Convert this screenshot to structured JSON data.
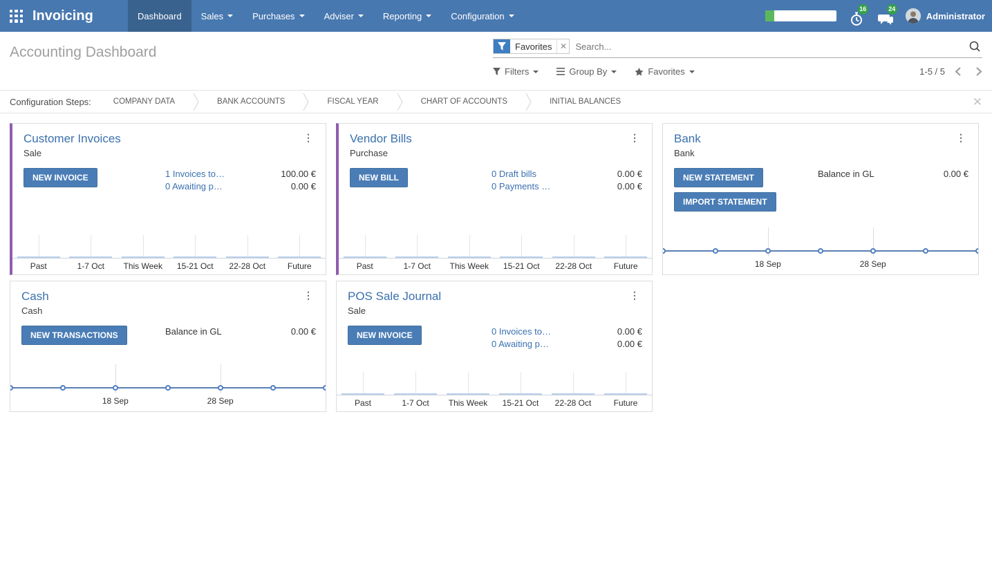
{
  "colors": {
    "header_bg": "#4878b0",
    "header_active_bg": "#3a628f",
    "accent_stripe_purple": "#8f5dad",
    "button_blue": "#4a7db6",
    "link_blue": "#3a70b0",
    "badge_green": "#34a04a",
    "progress_green": "#5cb85c",
    "chart_line_blue": "#5b7fb4",
    "chart_bar_blue": "#b9cfe8"
  },
  "header": {
    "brand": "Invoicing",
    "menu": [
      {
        "label": "Dashboard",
        "active": true,
        "caret": false
      },
      {
        "label": "Sales",
        "active": false,
        "caret": true
      },
      {
        "label": "Purchases",
        "active": false,
        "caret": true
      },
      {
        "label": "Adviser",
        "active": false,
        "caret": true
      },
      {
        "label": "Reporting",
        "active": false,
        "caret": true
      },
      {
        "label": "Configuration",
        "active": false,
        "caret": true
      }
    ],
    "systray": {
      "progress_percent": 13,
      "timer_badge": "16",
      "chat_badge": "24",
      "user_name": "Administrator"
    }
  },
  "control_panel": {
    "title": "Accounting Dashboard",
    "search": {
      "facet_label": "Favorites",
      "placeholder": "Search..."
    },
    "filters_label": "Filters",
    "group_by_label": "Group By",
    "favorites_label": "Favorites",
    "pager_range": "1-5 / 5"
  },
  "config_steps": {
    "label": "Configuration Steps:",
    "steps": [
      "COMPANY DATA",
      "BANK ACCOUNTS",
      "FISCAL YEAR",
      "CHART OF ACCOUNTS",
      "INITIAL BALANCES"
    ]
  },
  "cards": [
    {
      "title": "Customer Invoices",
      "subtitle": "Sale",
      "accent_stripe": true,
      "row": 1,
      "buttons": [
        "NEW INVOICE"
      ],
      "stats": [
        {
          "link": "1 Invoices to…",
          "value": "100.00 €"
        },
        {
          "link": "0 Awaiting p…",
          "value": "0.00 €"
        }
      ],
      "chart": {
        "type": "bar",
        "categories": [
          "Past",
          "1-7 Oct",
          "This Week",
          "15-21 Oct",
          "22-28 Oct",
          "Future"
        ],
        "values": [
          0,
          0,
          0,
          0,
          0,
          0
        ]
      }
    },
    {
      "title": "Vendor Bills",
      "subtitle": "Purchase",
      "accent_stripe": true,
      "row": 1,
      "buttons": [
        "NEW BILL"
      ],
      "stats": [
        {
          "link": "0 Draft bills",
          "value": "0.00 €"
        },
        {
          "link": "0 Payments …",
          "value": "0.00 €"
        }
      ],
      "chart": {
        "type": "bar",
        "categories": [
          "Past",
          "1-7 Oct",
          "This Week",
          "15-21 Oct",
          "22-28 Oct",
          "Future"
        ],
        "values": [
          0,
          0,
          0,
          0,
          0,
          0
        ]
      }
    },
    {
      "title": "Bank",
      "subtitle": "Bank",
      "accent_stripe": false,
      "row": 1,
      "buttons": [
        "NEW STATEMENT",
        "IMPORT STATEMENT"
      ],
      "stats": [
        {
          "label": "Balance in GL",
          "value": "0.00 €"
        }
      ],
      "chart": {
        "type": "line",
        "tick_labels": [
          "18 Sep",
          "28 Sep"
        ],
        "tick_positions": [
          33.3,
          66.6
        ],
        "marker_positions": [
          0,
          16.6,
          33.3,
          50,
          66.6,
          83.3,
          100
        ],
        "values": [
          0,
          0,
          0,
          0,
          0,
          0,
          0
        ]
      }
    },
    {
      "title": "Cash",
      "subtitle": "Cash",
      "accent_stripe": false,
      "row": 2,
      "buttons": [
        "NEW TRANSACTIONS"
      ],
      "stats": [
        {
          "label": "Balance in GL",
          "value": "0.00 €"
        }
      ],
      "chart": {
        "type": "line",
        "tick_labels": [
          "18 Sep",
          "28 Sep"
        ],
        "tick_positions": [
          33.3,
          66.6
        ],
        "marker_positions": [
          0,
          16.6,
          33.3,
          50,
          66.6,
          83.3,
          100
        ],
        "values": [
          0,
          0,
          0,
          0,
          0,
          0,
          0
        ]
      }
    },
    {
      "title": "POS Sale Journal",
      "subtitle": "Sale",
      "accent_stripe": false,
      "row": 2,
      "buttons": [
        "NEW INVOICE"
      ],
      "stats": [
        {
          "link": "0 Invoices to…",
          "value": "0.00 €"
        },
        {
          "link": "0 Awaiting p…",
          "value": "0.00 €"
        }
      ],
      "chart": {
        "type": "bar",
        "categories": [
          "Past",
          "1-7 Oct",
          "This Week",
          "15-21 Oct",
          "22-28 Oct",
          "Future"
        ],
        "values": [
          0,
          0,
          0,
          0,
          0,
          0
        ]
      }
    }
  ]
}
